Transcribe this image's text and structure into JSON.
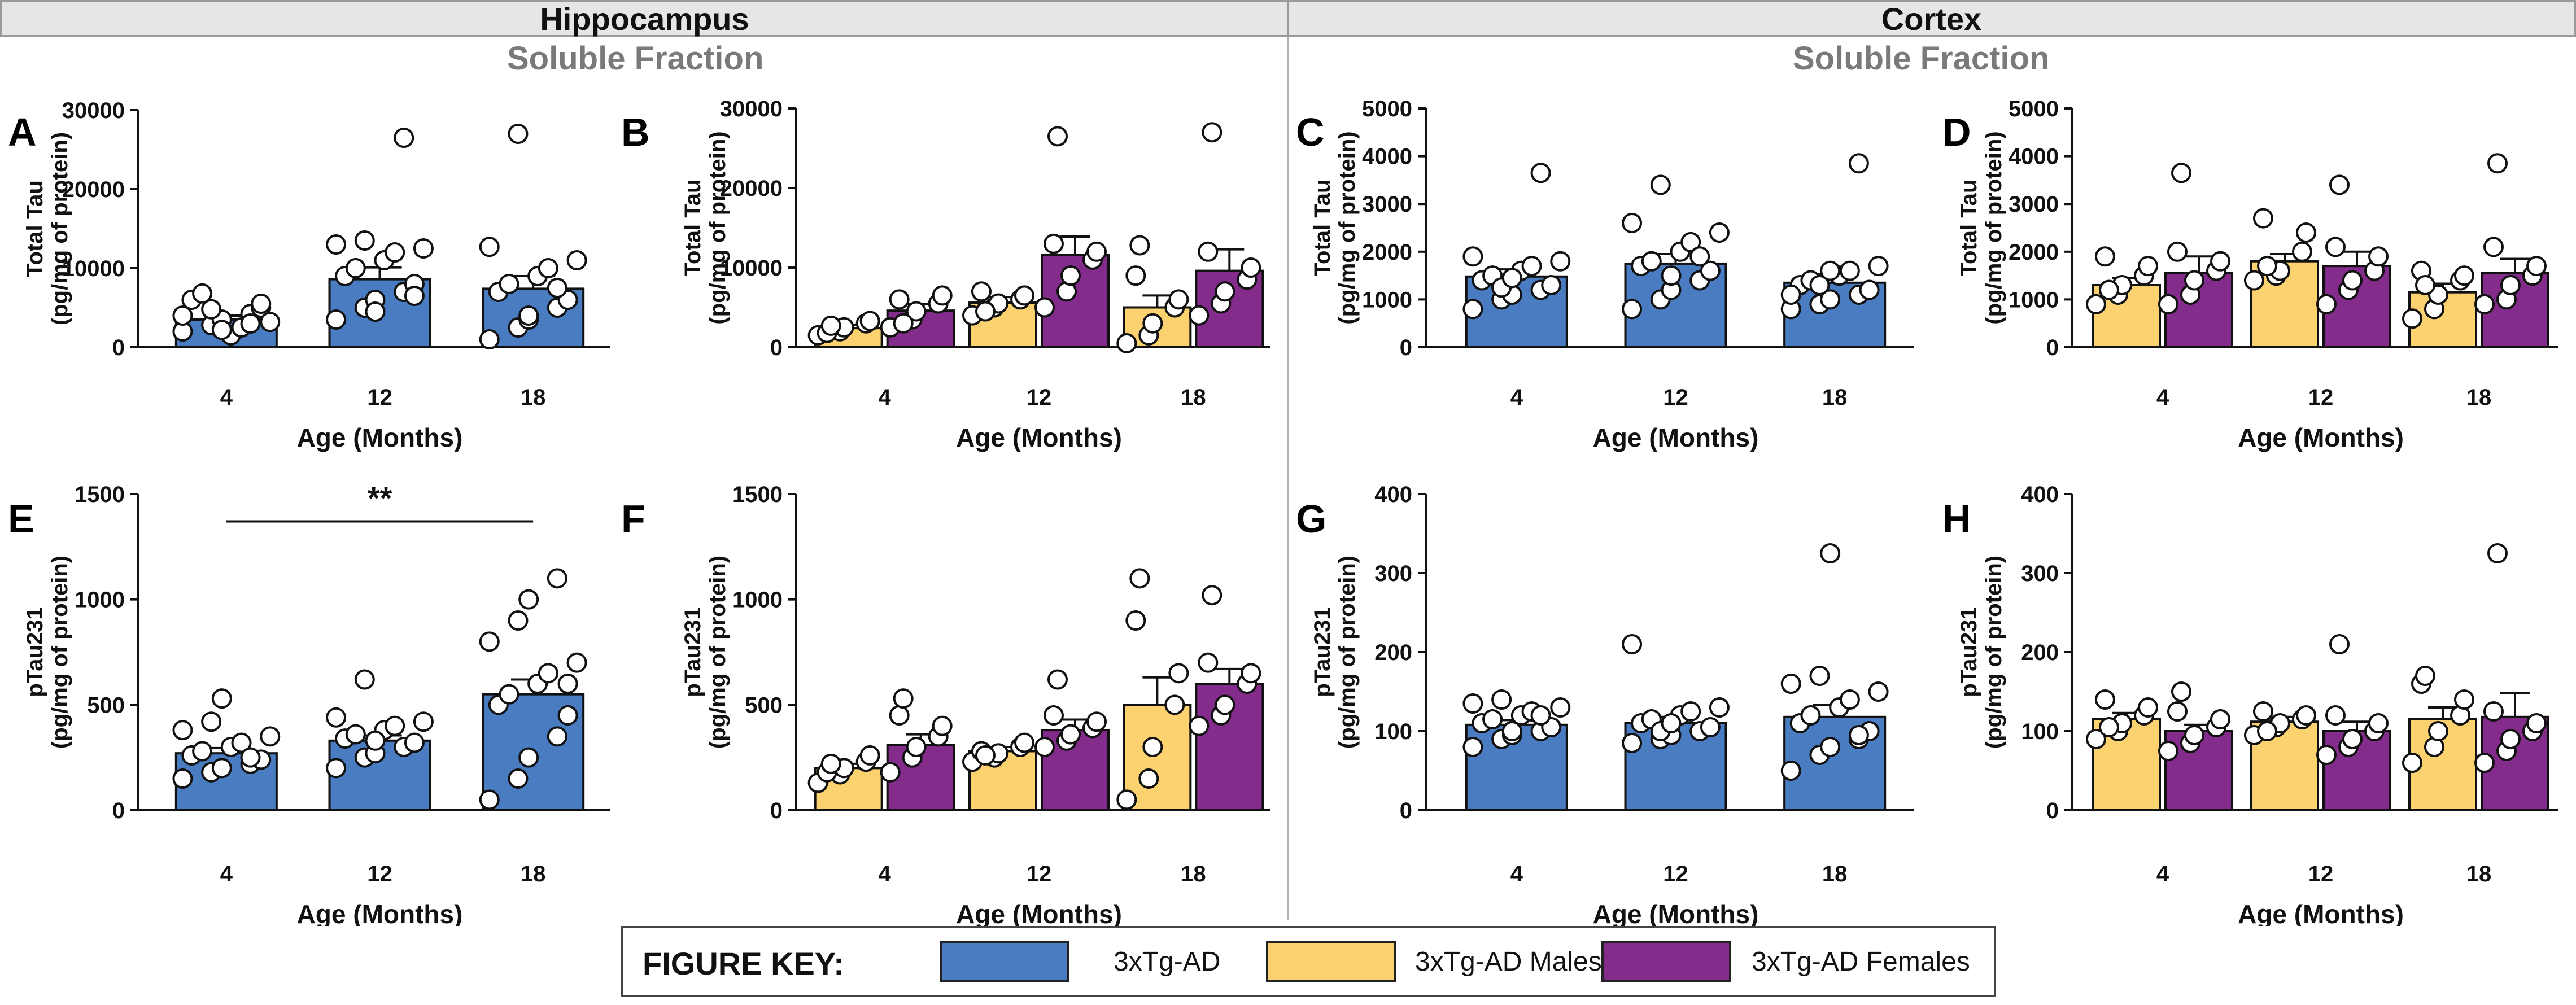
{
  "header": {
    "left_title": "Hippocampus",
    "right_title": "Cortex",
    "left_fraction": "Soluble Fraction",
    "right_fraction": "Soluble Fraction"
  },
  "colors": {
    "combined": "#4a7cc1",
    "males": "#fcd271",
    "females": "#832c8c"
  },
  "legend": {
    "title": "FIGURE KEY:",
    "items": [
      {
        "label": "3xTg-AD",
        "color": "#4a7cc1"
      },
      {
        "label": "3xTg-AD Males",
        "color": "#fcd271"
      },
      {
        "label": "3xTg-AD Females",
        "color": "#832c8c"
      }
    ]
  },
  "chart_data": [
    {
      "letter": "A",
      "type": "bar",
      "region": "Hippocampus",
      "ylabel_line1": "Total Tau",
      "ylabel_line2": "(pg/mg of protein)",
      "xlabel": "Age (Months)",
      "categories": [
        "4",
        "12",
        "18"
      ],
      "ylim": [
        0,
        30000
      ],
      "yticks": [
        "0",
        "10000",
        "20000",
        "30000"
      ],
      "series": [
        {
          "name": "3xTg-AD",
          "color": "#4a7cc1",
          "values": [
            3500,
            8600,
            7400
          ],
          "sem": [
            500,
            1500,
            1600
          ],
          "points": [
            [
              2000,
              2800,
              3500,
              4200,
              5000,
              6000,
              6800,
              1500,
              2500,
              3200,
              4000,
              4800,
              2200,
              3000,
              5500
            ],
            [
              3500,
              5000,
              6000,
              7000,
              8000,
              9000,
              10000,
              11000,
              12000,
              12500,
              13000,
              13500,
              4500,
              26500,
              6500
            ],
            [
              1000,
              2500,
              3500,
              5000,
              6000,
              7000,
              8000,
              9000,
              10000,
              11000,
              12700,
              27000,
              4000,
              7500
            ]
          ]
        }
      ],
      "annotation": null
    },
    {
      "letter": "B",
      "type": "bar",
      "region": "Hippocampus",
      "ylabel_line1": "Total Tau",
      "ylabel_line2": "(pg/mg of protein)",
      "xlabel": "Age (Months)",
      "categories": [
        "4",
        "12",
        "18"
      ],
      "ylim": [
        0,
        30000
      ],
      "yticks": [
        "0",
        "10000",
        "20000",
        "30000"
      ],
      "series": [
        {
          "name": "3xTg-AD Males",
          "color": "#fcd271",
          "values": [
            2400,
            5600,
            5000
          ],
          "sem": [
            400,
            700,
            1500
          ],
          "points": [
            [
              1500,
              2000,
              2500,
              3000,
              3300,
              1800,
              2700
            ],
            [
              4000,
              5000,
              5500,
              6000,
              6500,
              7000,
              4500
            ],
            [
              500,
              1500,
              3000,
              5000,
              6000,
              9000,
              12800
            ]
          ]
        },
        {
          "name": "3xTg-AD Females",
          "color": "#832c8c",
          "values": [
            4600,
            11600,
            9600
          ],
          "sem": [
            800,
            2300,
            2700
          ],
          "points": [
            [
              2500,
              3500,
              4500,
              5500,
              6500,
              6000,
              3000
            ],
            [
              5000,
              7000,
              9000,
              11000,
              12000,
              13000,
              26500
            ],
            [
              4000,
              5500,
              7000,
              8500,
              10000,
              12000,
              27000
            ]
          ]
        }
      ],
      "annotation": null
    },
    {
      "letter": "C",
      "type": "bar",
      "region": "Cortex",
      "ylabel_line1": "Total Tau",
      "ylabel_line2": "(pg/mg of protein)",
      "xlabel": "Age (Months)",
      "categories": [
        "4",
        "12",
        "18"
      ],
      "ylim": [
        0,
        5000
      ],
      "yticks": [
        "0",
        "1000",
        "2000",
        "3000",
        "4000",
        "5000"
      ],
      "series": [
        {
          "name": "3xTg-AD",
          "color": "#4a7cc1",
          "values": [
            1480,
            1750,
            1350
          ],
          "sem": [
            150,
            200,
            180
          ],
          "points": [
            [
              800,
              1000,
              1100,
              1200,
              1300,
              1400,
              1500,
              1600,
              1700,
              1800,
              1900,
              1250,
              1450,
              3650
            ],
            [
              800,
              1000,
              1200,
              1400,
              1600,
              1700,
              1800,
              2000,
              2200,
              2400,
              2600,
              3400,
              1500,
              1900
            ],
            [
              800,
              900,
              1000,
              1100,
              1200,
              1300,
              1400,
              1500,
              1600,
              1700,
              1100,
              1300,
              1600,
              3850
            ]
          ]
        }
      ],
      "annotation": null
    },
    {
      "letter": "D",
      "type": "bar",
      "region": "Cortex",
      "ylabel_line1": "Total Tau",
      "ylabel_line2": "(pg/mg of protein)",
      "xlabel": "Age (Months)",
      "categories": [
        "4",
        "12",
        "18"
      ],
      "ylim": [
        0,
        5000
      ],
      "yticks": [
        "0",
        "1000",
        "2000",
        "3000",
        "4000",
        "5000"
      ],
      "series": [
        {
          "name": "3xTg-AD Males",
          "color": "#fcd271",
          "values": [
            1300,
            1800,
            1150
          ],
          "sem": [
            150,
            150,
            180
          ],
          "points": [
            [
              900,
              1100,
              1300,
              1500,
              1700,
              1900,
              1200
            ],
            [
              1400,
              1500,
              1600,
              2000,
              2400,
              2700,
              1700
            ],
            [
              600,
              800,
              1100,
              1400,
              1500,
              1600,
              1300
            ]
          ]
        },
        {
          "name": "3xTg-AD Females",
          "color": "#832c8c",
          "values": [
            1550,
            1700,
            1550
          ],
          "sem": [
            350,
            300,
            300
          ],
          "points": [
            [
              900,
              1100,
              1400,
              1600,
              1800,
              2000,
              3650
            ],
            [
              900,
              1200,
              1400,
              1600,
              1900,
              2100,
              3400
            ],
            [
              900,
              1000,
              1300,
              1500,
              1700,
              2100,
              3850
            ]
          ]
        }
      ],
      "annotation": null
    },
    {
      "letter": "E",
      "type": "bar",
      "region": "Hippocampus",
      "ylabel_line1": "pTau231",
      "ylabel_line2": "(pg/mg of protein)",
      "xlabel": "Age (Months)",
      "categories": [
        "4",
        "12",
        "18"
      ],
      "ylim": [
        0,
        1500
      ],
      "yticks": [
        "0",
        "500",
        "1000",
        "1500"
      ],
      "series": [
        {
          "name": "3xTg-AD",
          "color": "#4a7cc1",
          "values": [
            270,
            330,
            550
          ],
          "sem": [
            25,
            25,
            70
          ],
          "points": [
            [
              150,
              180,
              200,
              220,
              240,
              260,
              280,
              300,
              320,
              350,
              380,
              420,
              530,
              250
            ],
            [
              200,
              250,
              270,
              300,
              320,
              340,
              360,
              380,
              400,
              420,
              440,
              620,
              330
            ],
            [
              50,
              150,
              250,
              350,
              450,
              500,
              550,
              600,
              650,
              700,
              800,
              900,
              1000,
              1100,
              600
            ]
          ]
        }
      ],
      "annotation": {
        "text": "**",
        "from": 0,
        "to": 2,
        "y": 1370
      }
    },
    {
      "letter": "F",
      "type": "bar",
      "region": "Hippocampus",
      "ylabel_line1": "pTau231",
      "ylabel_line2": "(pg/mg of protein)",
      "xlabel": "Age (Months)",
      "categories": [
        "4",
        "12",
        "18"
      ],
      "ylim": [
        0,
        1500
      ],
      "yticks": [
        "0",
        "500",
        "1000",
        "1500"
      ],
      "series": [
        {
          "name": "3xTg-AD Males",
          "color": "#fcd271",
          "values": [
            200,
            280,
            500
          ],
          "sem": [
            20,
            20,
            130
          ],
          "points": [
            [
              130,
              170,
              200,
              230,
              260,
              180,
              220
            ],
            [
              230,
              250,
              270,
              300,
              320,
              280,
              260
            ],
            [
              50,
              150,
              300,
              500,
              650,
              900,
              1100
            ]
          ]
        },
        {
          "name": "3xTg-AD Females",
          "color": "#832c8c",
          "values": [
            310,
            380,
            600
          ],
          "sem": [
            50,
            50,
            70
          ],
          "points": [
            [
              180,
              250,
              300,
              350,
              400,
              450,
              530
            ],
            [
              300,
              330,
              360,
              390,
              420,
              450,
              620
            ],
            [
              400,
              450,
              500,
              600,
              650,
              700,
              1020
            ]
          ]
        }
      ],
      "annotation": null
    },
    {
      "letter": "G",
      "type": "bar",
      "region": "Cortex",
      "ylabel_line1": "pTau231",
      "ylabel_line2": "(pg/mg of protein)",
      "xlabel": "Age (Months)",
      "categories": [
        "4",
        "12",
        "18"
      ],
      "ylim": [
        0,
        400
      ],
      "yticks": [
        "0",
        "100",
        "200",
        "300",
        "400"
      ],
      "series": [
        {
          "name": "3xTg-AD",
          "color": "#4a7cc1",
          "values": [
            108,
            110,
            118
          ],
          "sem": [
            6,
            8,
            15
          ],
          "points": [
            [
              80,
              90,
              95,
              100,
              105,
              110,
              115,
              120,
              125,
              130,
              135,
              140,
              100,
              120
            ],
            [
              85,
              90,
              95,
              100,
              105,
              110,
              115,
              120,
              125,
              130,
              210,
              100,
              110
            ],
            [
              50,
              70,
              80,
              90,
              100,
              110,
              120,
              130,
              140,
              150,
              160,
              170,
              325,
              95
            ]
          ]
        }
      ],
      "annotation": null
    },
    {
      "letter": "H",
      "type": "bar",
      "region": "Cortex",
      "ylabel_line1": "pTau231",
      "ylabel_line2": "(pg/mg of protein)",
      "xlabel": "Age (Months)",
      "categories": [
        "4",
        "12",
        "18"
      ],
      "ylim": [
        0,
        400
      ],
      "yticks": [
        "0",
        "100",
        "200",
        "300",
        "400"
      ],
      "series": [
        {
          "name": "3xTg-AD Males",
          "color": "#fcd271",
          "values": [
            115,
            112,
            115
          ],
          "sem": [
            8,
            6,
            15
          ],
          "points": [
            [
              90,
              100,
              110,
              120,
              130,
              140,
              105
            ],
            [
              95,
              105,
              110,
              115,
              120,
              125,
              100
            ],
            [
              60,
              80,
              100,
              120,
              140,
              160,
              170
            ]
          ]
        },
        {
          "name": "3xTg-AD Females",
          "color": "#832c8c",
          "values": [
            100,
            100,
            118
          ],
          "sem": [
            8,
            12,
            30
          ],
          "points": [
            [
              75,
              85,
              95,
              105,
              115,
              125,
              150
            ],
            [
              70,
              80,
              90,
              100,
              110,
              120,
              210
            ],
            [
              60,
              75,
              90,
              100,
              110,
              125,
              325
            ]
          ]
        }
      ],
      "annotation": null
    }
  ]
}
